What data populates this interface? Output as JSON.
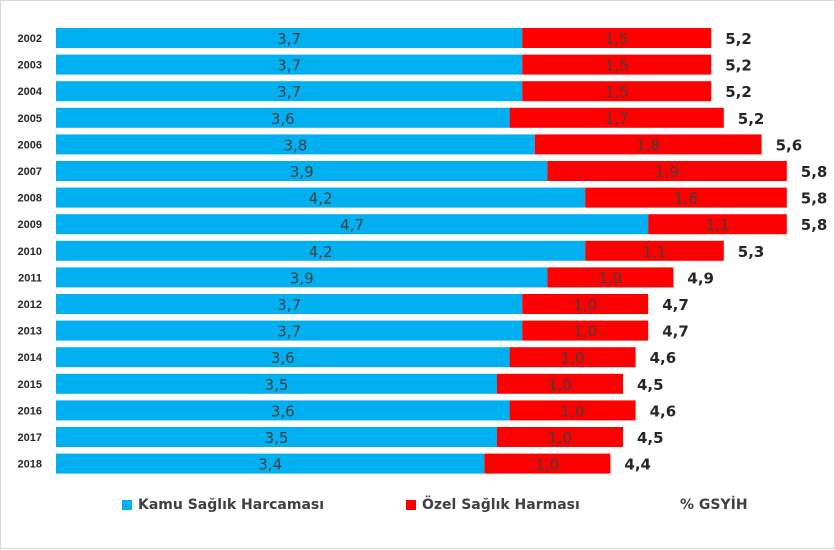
{
  "chart_data": {
    "type": "bar",
    "orientation": "horizontal",
    "stacked": true,
    "categories": [
      "2002",
      "2003",
      "2004",
      "2005",
      "2006",
      "2007",
      "2008",
      "2009",
      "2010",
      "2011",
      "2012",
      "2013",
      "2014",
      "2015",
      "2016",
      "2017",
      "2018"
    ],
    "series": [
      {
        "name": "Kamu Sağlık Harcaması",
        "color": "#00b0f0",
        "values": [
          3.7,
          3.7,
          3.7,
          3.6,
          3.8,
          3.9,
          4.2,
          4.7,
          4.2,
          3.9,
          3.7,
          3.7,
          3.6,
          3.5,
          3.6,
          3.5,
          3.4
        ],
        "labels": [
          "3,7",
          "3,7",
          "3,7",
          "3,6",
          "3,8",
          "3,9",
          "4,2",
          "4,7",
          "4,2",
          "3,9",
          "3,7",
          "3,7",
          "3,6",
          "3,5",
          "3,6",
          "3,5",
          "3,4"
        ]
      },
      {
        "name": "Özel Sağlık Harması",
        "color": "#ff0000",
        "values": [
          1.5,
          1.5,
          1.5,
          1.7,
          1.8,
          1.9,
          1.6,
          1.1,
          1.1,
          1.0,
          1.0,
          1.0,
          1.0,
          1.0,
          1.0,
          1.0,
          1.0
        ],
        "labels": [
          "1,5",
          "1,5",
          "1,5",
          "1,7",
          "1,8",
          "1,9",
          "1,6",
          "1,1",
          "1,1",
          "1,0",
          "1,0",
          "1,0",
          "1,0",
          "1,0",
          "1,0",
          "1,0",
          "1,0"
        ]
      }
    ],
    "totals": {
      "name": "% GSYİH",
      "values": [
        5.2,
        5.2,
        5.2,
        5.2,
        5.6,
        5.8,
        5.8,
        5.8,
        5.3,
        4.9,
        4.7,
        4.7,
        4.6,
        4.5,
        4.6,
        4.5,
        4.4
      ],
      "labels": [
        "5,2",
        "5,2",
        "5,2",
        "5,2",
        "5,6",
        "5,8",
        "5,8",
        "5,8",
        "5,3",
        "4,9",
        "4,7",
        "4,7",
        "4,6",
        "4,5",
        "4,6",
        "4,5",
        "4,4"
      ]
    },
    "title": "",
    "xlabel": "",
    "ylabel": "",
    "grid": false,
    "legend_position": "bottom"
  },
  "legend": {
    "kamu": "Kamu Sağlık Harcaması",
    "ozel": "Özel Sağlık Harması",
    "total": "% GSYİH"
  }
}
